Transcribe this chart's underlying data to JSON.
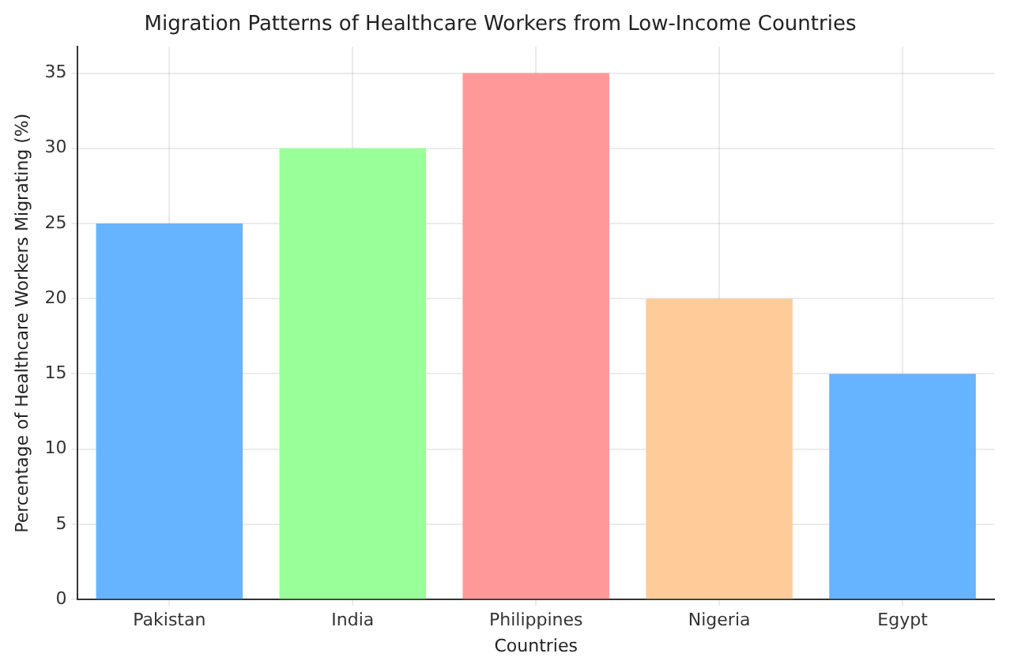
{
  "chart_data": {
    "type": "bar",
    "title": "Migration Patterns of Healthcare Workers from Low-Income Countries",
    "xlabel": "Countries",
    "ylabel": "Percentage of Healthcare Workers Migrating (%)",
    "categories": [
      "Pakistan",
      "India",
      "Philippines",
      "Nigeria",
      "Egypt"
    ],
    "values": [
      25,
      30,
      35,
      20,
      15
    ],
    "colors": [
      "#66b3ff",
      "#99ff99",
      "#ff9999",
      "#ffcc99",
      "#66b3ff"
    ],
    "ylim": [
      0,
      36.75
    ],
    "yticks": [
      0,
      5,
      10,
      15,
      20,
      25,
      30,
      35
    ],
    "grid": true,
    "legend": false
  }
}
